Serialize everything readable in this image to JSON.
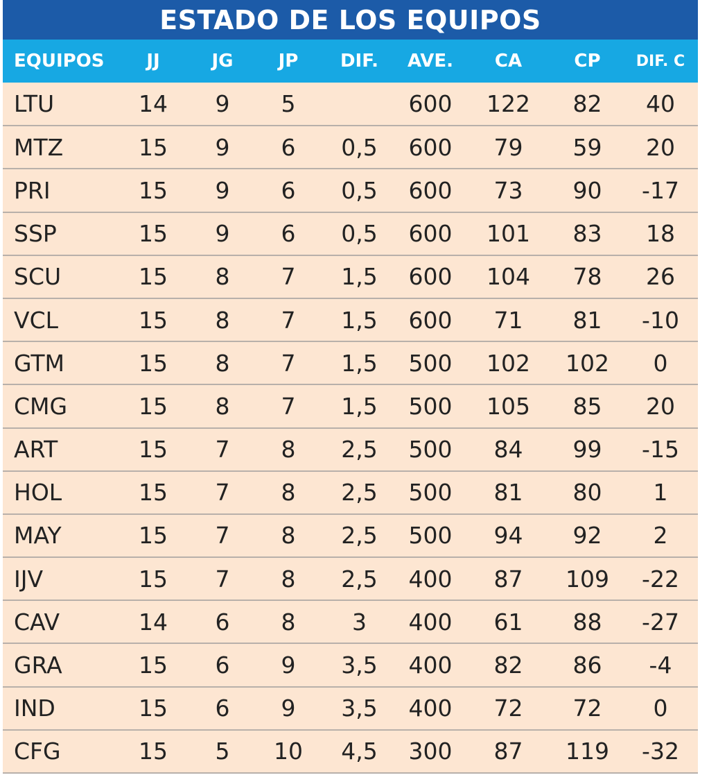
{
  "title": "ESTADO DE LOS EQUIPOS",
  "columns": [
    "EQUIPOS",
    "JJ",
    "JG",
    "JP",
    "DIF.",
    "AVE.",
    "CA",
    "CP",
    "DIF. C"
  ],
  "rows": [
    [
      "LTU",
      "14",
      "9",
      "5",
      "",
      "600",
      "122",
      "82",
      "40"
    ],
    [
      "MTZ",
      "15",
      "9",
      "6",
      "0,5",
      "600",
      "79",
      "59",
      "20"
    ],
    [
      "PRI",
      "15",
      "9",
      "6",
      "0,5",
      "600",
      "73",
      "90",
      "-17"
    ],
    [
      "SSP",
      "15",
      "9",
      "6",
      "0,5",
      "600",
      "101",
      "83",
      "18"
    ],
    [
      "SCU",
      "15",
      "8",
      "7",
      "1,5",
      "600",
      "104",
      "78",
      "26"
    ],
    [
      "VCL",
      "15",
      "8",
      "7",
      "1,5",
      "600",
      "71",
      "81",
      "-10"
    ],
    [
      "GTM",
      "15",
      "8",
      "7",
      "1,5",
      "500",
      "102",
      "102",
      "0"
    ],
    [
      "CMG",
      "15",
      "8",
      "7",
      "1,5",
      "500",
      "105",
      "85",
      "20"
    ],
    [
      "ART",
      "15",
      "7",
      "8",
      "2,5",
      "500",
      "84",
      "99",
      "-15"
    ],
    [
      "HOL",
      "15",
      "7",
      "8",
      "2,5",
      "500",
      "81",
      "80",
      "1"
    ],
    [
      "MAY",
      "15",
      "7",
      "8",
      "2,5",
      "500",
      "94",
      "92",
      "2"
    ],
    [
      "IJV",
      "15",
      "7",
      "8",
      "2,5",
      "400",
      "87",
      "109",
      "-22"
    ],
    [
      "CAV",
      "14",
      "6",
      "8",
      "3",
      "400",
      "61",
      "88",
      "-27"
    ],
    [
      "GRA",
      "15",
      "6",
      "9",
      "3,5",
      "400",
      "82",
      "86",
      "-4"
    ],
    [
      "IND",
      "15",
      "6",
      "9",
      "3,5",
      "400",
      "72",
      "72",
      "0"
    ],
    [
      "CFG",
      "15",
      "5",
      "10",
      "4,5",
      "300",
      "87",
      "119",
      "-32"
    ]
  ],
  "colors": {
    "title_bg": "#1c5ba8",
    "header_bg": "#17a8e3",
    "row_bg": "#fde6d2",
    "row_border": "#b8b0aa"
  }
}
